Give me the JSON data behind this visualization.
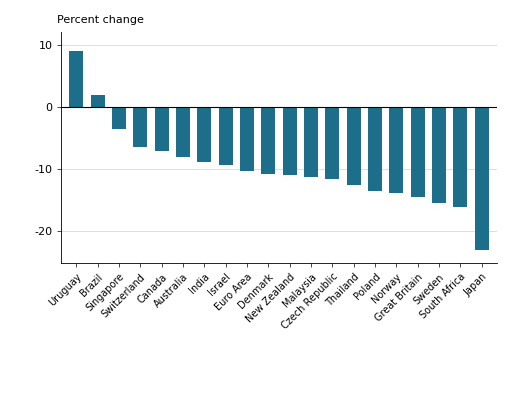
{
  "categories": [
    "Uruguay",
    "Brazil",
    "Singapore",
    "Switzerland",
    "Canada",
    "Australia",
    "India",
    "Israel",
    "Euro Area",
    "Denmark",
    "New Zealand",
    "Malaysia",
    "Czech Republic",
    "Thailand",
    "Poland",
    "Norway",
    "Great Britain",
    "Sweden",
    "South Africa",
    "Japan"
  ],
  "values": [
    9.0,
    2.0,
    -3.5,
    -6.5,
    -7.0,
    -8.0,
    -8.8,
    -9.3,
    -10.3,
    -10.8,
    -11.0,
    -11.2,
    -11.5,
    -12.5,
    -13.5,
    -13.8,
    -14.5,
    -15.5,
    -16.0,
    -23.0
  ],
  "bar_color": "#1c6e8a",
  "ylabel": "Percent change",
  "ylim": [
    -25,
    12
  ],
  "yticks": [
    -20,
    -10,
    0,
    10
  ],
  "background_color": "#ffffff",
  "bar_width": 0.65
}
